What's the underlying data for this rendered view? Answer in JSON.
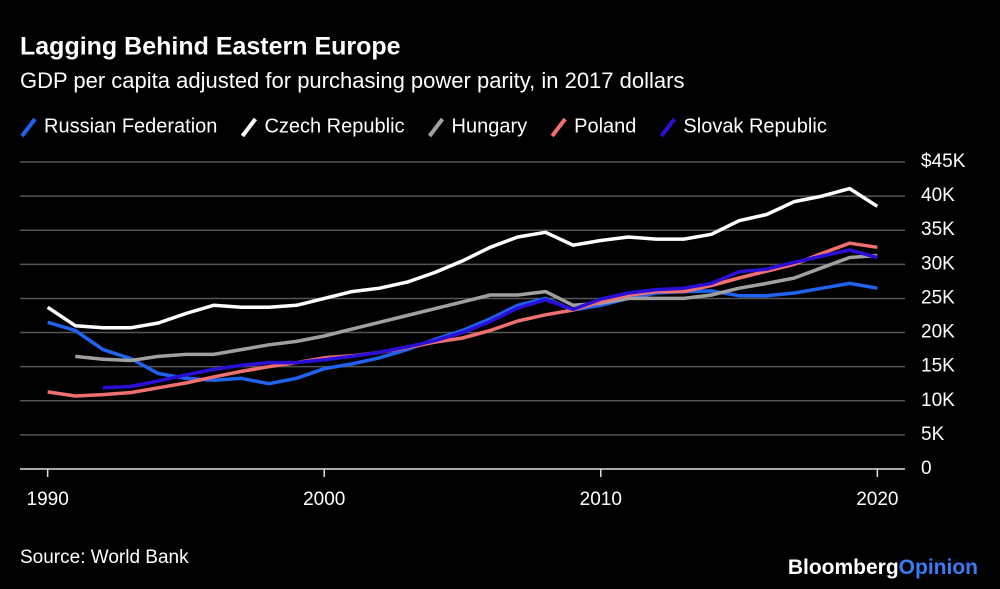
{
  "chart_data": {
    "type": "line",
    "title": "Lagging Behind Eastern Europe",
    "subtitle": "GDP per capita adjusted for purchasing power parity, in 2017 dollars",
    "source": "Source: World Bank",
    "x": [
      1990,
      1991,
      1992,
      1993,
      1994,
      1995,
      1996,
      1997,
      1998,
      1999,
      2000,
      2001,
      2002,
      2003,
      2004,
      2005,
      2006,
      2007,
      2008,
      2009,
      2010,
      2011,
      2012,
      2013,
      2014,
      2015,
      2016,
      2017,
      2018,
      2019,
      2020
    ],
    "xlim": [
      1989,
      2021
    ],
    "xticks": [
      1990,
      2000,
      2010,
      2020
    ],
    "ylim": [
      0,
      45000
    ],
    "yticks": [
      {
        "value": 0,
        "label": "0"
      },
      {
        "value": 5000,
        "label": "5K"
      },
      {
        "value": 10000,
        "label": "10K"
      },
      {
        "value": 15000,
        "label": "15K"
      },
      {
        "value": 20000,
        "label": "20K"
      },
      {
        "value": 25000,
        "label": "25K"
      },
      {
        "value": 30000,
        "label": "30K"
      },
      {
        "value": 35000,
        "label": "35K"
      },
      {
        "value": 40000,
        "label": "40K"
      },
      {
        "value": 45000,
        "label": "$45K"
      }
    ],
    "grid": true,
    "series": [
      {
        "name": "Russian Federation",
        "color": "#1f63f0",
        "values": [
          21500,
          20300,
          17500,
          16200,
          14000,
          13300,
          13000,
          13300,
          12500,
          13300,
          14700,
          15400,
          16300,
          17500,
          19000,
          20300,
          22000,
          24000,
          25000,
          23300,
          24000,
          25000,
          25800,
          26000,
          26100,
          25400,
          25400,
          25800,
          26500,
          27200,
          26500
        ]
      },
      {
        "name": "Czech Republic",
        "color": "#ffffff",
        "values": [
          23700,
          21000,
          20700,
          20700,
          21400,
          22800,
          24000,
          23700,
          23700,
          24000,
          25000,
          26000,
          26500,
          27400,
          28800,
          30500,
          32500,
          34000,
          34700,
          32800,
          33500,
          34000,
          33700,
          33700,
          34400,
          36400,
          37300,
          39200,
          40000,
          41100,
          38500
        ]
      },
      {
        "name": "Hungary",
        "color": "#a0a0a0",
        "values": [
          null,
          16500,
          16100,
          15900,
          16500,
          16800,
          16800,
          17500,
          18200,
          18700,
          19500,
          20500,
          21500,
          22500,
          23500,
          24500,
          25500,
          25500,
          26000,
          24000,
          24300,
          25000,
          25000,
          25000,
          25500,
          26500,
          27200,
          28000,
          29500,
          31000,
          31300
        ]
      },
      {
        "name": "Poland",
        "color": "#f07070",
        "values": [
          11300,
          10700,
          10900,
          11200,
          11900,
          12600,
          13500,
          14300,
          15000,
          15600,
          16300,
          16600,
          17100,
          17800,
          18600,
          19200,
          20300,
          21700,
          22600,
          23300,
          24500,
          25500,
          26000,
          26000,
          26900,
          28000,
          29000,
          30000,
          31600,
          33100,
          32500
        ]
      },
      {
        "name": "Slovak Republic",
        "color": "#2a0fd8",
        "values": [
          null,
          null,
          11900,
          12100,
          12900,
          13800,
          14600,
          15200,
          15600,
          15600,
          16000,
          16500,
          17100,
          17900,
          18800,
          20000,
          21600,
          23600,
          24800,
          23400,
          24900,
          25800,
          26300,
          26500,
          27200,
          28900,
          29300,
          30300,
          31200,
          32100,
          31000
        ]
      }
    ]
  },
  "logo": {
    "brand": "Bloomberg",
    "suffix": "Opinion"
  }
}
